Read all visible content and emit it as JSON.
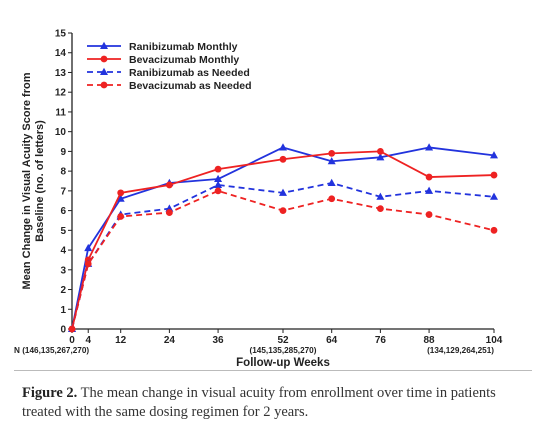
{
  "chart_data": {
    "type": "line",
    "xlabel": "Follow-up Weeks",
    "ylabel_line1": "Mean Change in Visual Acuity Score from",
    "ylabel_line2": "Baseline (no. of letters)",
    "x": [
      0,
      4,
      12,
      24,
      36,
      52,
      64,
      76,
      88,
      104
    ],
    "xlim": [
      0,
      104
    ],
    "ylim": [
      0,
      15
    ],
    "yticks": [
      0,
      1,
      2,
      3,
      4,
      5,
      6,
      7,
      8,
      9,
      10,
      11,
      12,
      13,
      14,
      15
    ],
    "grid": false,
    "legend_position": "top-left",
    "series": [
      {
        "name": "Ranibizumab Monthly",
        "color": "#2233dd",
        "dash": false,
        "marker": "triangle",
        "values": [
          0,
          4.1,
          6.6,
          7.4,
          7.6,
          9.2,
          8.5,
          8.7,
          9.2,
          8.8
        ]
      },
      {
        "name": "Bevacizumab Monthly",
        "color": "#ee2222",
        "dash": false,
        "marker": "circle",
        "values": [
          0,
          3.5,
          6.9,
          7.3,
          8.1,
          8.6,
          8.9,
          9.0,
          7.7,
          7.8
        ]
      },
      {
        "name": "Ranibizumab as Needed",
        "color": "#2233dd",
        "dash": true,
        "marker": "triangle",
        "values": [
          0,
          3.3,
          5.8,
          6.1,
          7.3,
          6.9,
          7.4,
          6.7,
          7.0,
          6.7
        ]
      },
      {
        "name": "Bevacizumab as Needed",
        "color": "#ee2222",
        "dash": true,
        "marker": "circle",
        "values": [
          0,
          3.3,
          5.7,
          5.9,
          7.0,
          6.0,
          6.6,
          6.1,
          5.8,
          5.0
        ]
      }
    ],
    "n_annotations": [
      {
        "text": "N (146,135,267,270)",
        "x": 0,
        "align": "start"
      },
      {
        "text": "(145,135,285,270)",
        "x": 52,
        "align": "middle"
      },
      {
        "text": "(134,129,264,251)",
        "x": 104,
        "align": "end"
      }
    ]
  },
  "caption": {
    "label": "Figure 2.",
    "text": " The mean change in visual acuity from enrollment over time in patients treated with the same dosing regimen for 2 years."
  }
}
